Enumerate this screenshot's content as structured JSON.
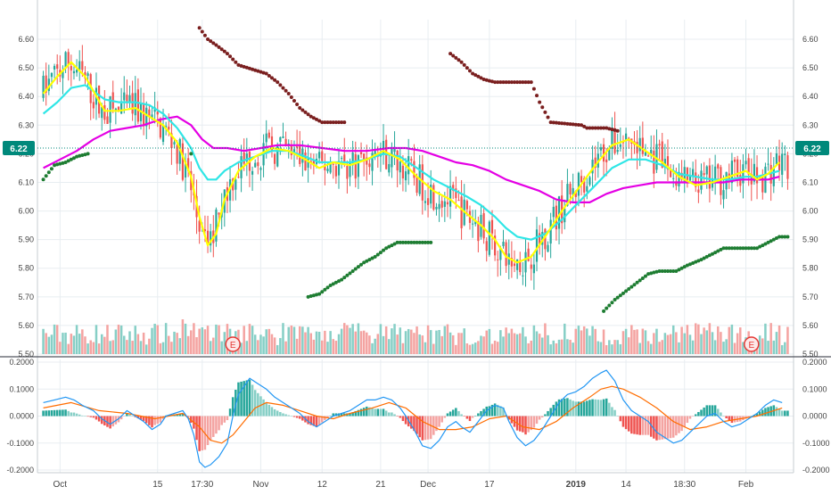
{
  "colors": {
    "up": "#26a69a",
    "down": "#ef5350",
    "vol_up": "#86cfc6",
    "vol_down": "#f4a3a1",
    "ema_fast": "#ffff00",
    "ema_mid": "#2fe6e6",
    "ema_slow": "#e400e4",
    "sar_up": "#1e7d32",
    "sar_down": "#7a1f1f",
    "macd": "#2196f3",
    "signal": "#ff6d00",
    "price_tag": "#00897b",
    "grid": "#e8edf1"
  },
  "chart_data": [
    {
      "type": "line",
      "title": "",
      "ylim": [
        5.5,
        6.65
      ],
      "y_ticks": [
        "6.60",
        "6.50",
        "6.40",
        "6.30",
        "6.20",
        "6.10",
        "6.00",
        "5.90",
        "5.80",
        "5.70",
        "5.60",
        "5.50"
      ],
      "x_ticks": [
        "Oct",
        "15",
        "17:30",
        "Nov",
        "12",
        "21",
        "Dec",
        "17",
        "2019",
        "14",
        "18:30",
        "Feb"
      ],
      "last_price": "6.22",
      "events": [
        "E",
        "E"
      ],
      "ema_fast": [
        [
          0,
          6.41
        ],
        [
          5,
          6.47
        ],
        [
          10,
          6.52
        ],
        [
          15,
          6.47
        ],
        [
          22,
          6.35
        ],
        [
          27,
          6.35
        ],
        [
          33,
          6.36
        ],
        [
          38,
          6.33
        ],
        [
          43,
          6.3
        ],
        [
          48,
          6.24
        ],
        [
          53,
          6.12
        ],
        [
          56,
          5.98
        ],
        [
          59,
          5.88
        ],
        [
          62,
          5.92
        ],
        [
          65,
          6.04
        ],
        [
          70,
          6.14
        ],
        [
          76,
          6.19
        ],
        [
          82,
          6.22
        ],
        [
          88,
          6.21
        ],
        [
          94,
          6.18
        ],
        [
          99,
          6.15
        ],
        [
          104,
          6.17
        ],
        [
          110,
          6.16
        ],
        [
          116,
          6.18
        ],
        [
          122,
          6.21
        ],
        [
          128,
          6.18
        ],
        [
          134,
          6.12
        ],
        [
          140,
          6.07
        ],
        [
          146,
          6.04
        ],
        [
          152,
          5.99
        ],
        [
          157,
          5.95
        ],
        [
          162,
          5.9
        ],
        [
          166,
          5.84
        ],
        [
          170,
          5.82
        ],
        [
          175,
          5.84
        ],
        [
          180,
          5.91
        ],
        [
          186,
          6.0
        ],
        [
          192,
          6.08
        ],
        [
          198,
          6.16
        ],
        [
          204,
          6.23
        ],
        [
          210,
          6.25
        ],
        [
          216,
          6.21
        ],
        [
          222,
          6.17
        ],
        [
          228,
          6.12
        ],
        [
          234,
          6.09
        ],
        [
          240,
          6.1
        ],
        [
          246,
          6.12
        ],
        [
          252,
          6.14
        ],
        [
          256,
          6.11
        ],
        [
          260,
          6.13
        ],
        [
          264,
          6.17
        ]
      ],
      "ema_mid": [
        [
          0,
          6.34
        ],
        [
          5,
          6.38
        ],
        [
          10,
          6.43
        ],
        [
          15,
          6.44
        ],
        [
          22,
          6.39
        ],
        [
          27,
          6.38
        ],
        [
          33,
          6.38
        ],
        [
          38,
          6.37
        ],
        [
          43,
          6.34
        ],
        [
          48,
          6.29
        ],
        [
          53,
          6.22
        ],
        [
          56,
          6.15
        ],
        [
          59,
          6.11
        ],
        [
          62,
          6.11
        ],
        [
          65,
          6.14
        ],
        [
          70,
          6.17
        ],
        [
          76,
          6.19
        ],
        [
          82,
          6.21
        ],
        [
          88,
          6.21
        ],
        [
          94,
          6.19
        ],
        [
          99,
          6.17
        ],
        [
          104,
          6.17
        ],
        [
          110,
          6.17
        ],
        [
          116,
          6.18
        ],
        [
          122,
          6.2
        ],
        [
          128,
          6.19
        ],
        [
          134,
          6.15
        ],
        [
          140,
          6.11
        ],
        [
          146,
          6.08
        ],
        [
          152,
          6.05
        ],
        [
          157,
          6.02
        ],
        [
          162,
          5.98
        ],
        [
          166,
          5.94
        ],
        [
          170,
          5.91
        ],
        [
          175,
          5.9
        ],
        [
          180,
          5.92
        ],
        [
          186,
          5.97
        ],
        [
          192,
          6.03
        ],
        [
          198,
          6.09
        ],
        [
          204,
          6.15
        ],
        [
          210,
          6.18
        ],
        [
          216,
          6.18
        ],
        [
          222,
          6.16
        ],
        [
          228,
          6.13
        ],
        [
          234,
          6.12
        ],
        [
          240,
          6.11
        ],
        [
          246,
          6.11
        ],
        [
          252,
          6.12
        ],
        [
          256,
          6.12
        ],
        [
          260,
          6.13
        ],
        [
          264,
          6.14
        ]
      ],
      "ema_slow": [
        [
          0,
          6.15
        ],
        [
          6,
          6.18
        ],
        [
          12,
          6.21
        ],
        [
          18,
          6.25
        ],
        [
          24,
          6.28
        ],
        [
          30,
          6.29
        ],
        [
          36,
          6.3
        ],
        [
          42,
          6.32
        ],
        [
          48,
          6.33
        ],
        [
          53,
          6.3
        ],
        [
          57,
          6.25
        ],
        [
          61,
          6.22
        ],
        [
          66,
          6.22
        ],
        [
          72,
          6.21
        ],
        [
          78,
          6.22
        ],
        [
          84,
          6.23
        ],
        [
          92,
          6.23
        ],
        [
          100,
          6.22
        ],
        [
          108,
          6.21
        ],
        [
          116,
          6.21
        ],
        [
          124,
          6.22
        ],
        [
          130,
          6.22
        ],
        [
          136,
          6.21
        ],
        [
          142,
          6.19
        ],
        [
          148,
          6.17
        ],
        [
          154,
          6.16
        ],
        [
          160,
          6.14
        ],
        [
          166,
          6.11
        ],
        [
          172,
          6.09
        ],
        [
          178,
          6.07
        ],
        [
          184,
          6.04
        ],
        [
          190,
          6.03
        ],
        [
          196,
          6.03
        ],
        [
          202,
          6.06
        ],
        [
          208,
          6.08
        ],
        [
          214,
          6.09
        ],
        [
          220,
          6.1
        ],
        [
          226,
          6.1
        ],
        [
          232,
          6.1
        ],
        [
          238,
          6.1
        ],
        [
          244,
          6.1
        ],
        [
          250,
          6.11
        ],
        [
          256,
          6.11
        ],
        [
          260,
          6.11
        ],
        [
          264,
          6.12
        ]
      ],
      "sar_up": [
        [
          0,
          6.11
        ],
        [
          4,
          6.16
        ],
        [
          8,
          6.17
        ],
        [
          12,
          6.19
        ],
        [
          16,
          6.2
        ],
        [
          53,
          6.2
        ],
        [
          95,
          5.7
        ],
        [
          99,
          5.71
        ],
        [
          103,
          5.74
        ],
        [
          107,
          5.76
        ],
        [
          111,
          5.79
        ],
        [
          115,
          5.82
        ],
        [
          119,
          5.84
        ],
        [
          123,
          5.87
        ],
        [
          127,
          5.89
        ],
        [
          139,
          5.89
        ],
        [
          201,
          5.65
        ],
        [
          205,
          5.69
        ],
        [
          209,
          5.72
        ],
        [
          213,
          5.75
        ],
        [
          217,
          5.78
        ],
        [
          221,
          5.79
        ],
        [
          227,
          5.79
        ],
        [
          231,
          5.81
        ],
        [
          236,
          5.83
        ],
        [
          240,
          5.85
        ],
        [
          244,
          5.87
        ],
        [
          256,
          5.87
        ],
        [
          260,
          5.89
        ],
        [
          264,
          5.91
        ],
        [
          267,
          5.91
        ]
      ],
      "sar_down": [
        [
          56,
          6.64
        ],
        [
          59,
          6.6
        ],
        [
          62,
          6.58
        ],
        [
          66,
          6.55
        ],
        [
          70,
          6.51
        ],
        [
          80,
          6.48
        ],
        [
          84,
          6.45
        ],
        [
          88,
          6.41
        ],
        [
          92,
          6.36
        ],
        [
          96,
          6.33
        ],
        [
          100,
          6.31
        ],
        [
          104,
          6.31
        ],
        [
          108,
          6.31
        ],
        [
          146,
          6.55
        ],
        [
          150,
          6.52
        ],
        [
          154,
          6.48
        ],
        [
          158,
          6.46
        ],
        [
          162,
          6.45
        ],
        [
          175,
          6.45
        ],
        [
          178,
          6.38
        ],
        [
          182,
          6.31
        ],
        [
          193,
          6.3
        ],
        [
          195,
          6.29
        ],
        [
          202,
          6.29
        ],
        [
          206,
          6.28
        ]
      ],
      "macd": [
        [
          0,
          0.05
        ],
        [
          4,
          0.06
        ],
        [
          8,
          0.07
        ],
        [
          11,
          0.06
        ],
        [
          14,
          0.04
        ],
        [
          18,
          0.02
        ],
        [
          21,
          -0.01
        ],
        [
          24,
          -0.03
        ],
        [
          27,
          -0.01
        ],
        [
          30,
          0.02
        ],
        [
          33,
          0.0
        ],
        [
          36,
          -0.02
        ],
        [
          39,
          -0.05
        ],
        [
          42,
          -0.03
        ],
        [
          44,
          0.0
        ],
        [
          47,
          0.01
        ],
        [
          50,
          0.02
        ],
        [
          52,
          -0.01
        ],
        [
          54,
          -0.07
        ],
        [
          56,
          -0.17
        ],
        [
          58,
          -0.19
        ],
        [
          60,
          -0.18
        ],
        [
          63,
          -0.15
        ],
        [
          66,
          -0.1
        ],
        [
          68,
          0.0
        ],
        [
          70,
          0.08
        ],
        [
          72,
          0.11
        ],
        [
          74,
          0.14
        ],
        [
          77,
          0.12
        ],
        [
          80,
          0.1
        ],
        [
          83,
          0.07
        ],
        [
          86,
          0.05
        ],
        [
          89,
          0.03
        ],
        [
          92,
          0.01
        ],
        [
          95,
          -0.02
        ],
        [
          98,
          -0.04
        ],
        [
          101,
          -0.02
        ],
        [
          104,
          0.0
        ],
        [
          107,
          0.01
        ],
        [
          110,
          0.02
        ],
        [
          113,
          0.04
        ],
        [
          116,
          0.06
        ],
        [
          119,
          0.06
        ],
        [
          122,
          0.07
        ],
        [
          125,
          0.06
        ],
        [
          128,
          0.03
        ],
        [
          130,
          0.0
        ],
        [
          133,
          -0.05
        ],
        [
          136,
          -0.11
        ],
        [
          139,
          -0.12
        ],
        [
          142,
          -0.09
        ],
        [
          145,
          -0.04
        ],
        [
          148,
          -0.02
        ],
        [
          150,
          -0.04
        ],
        [
          153,
          -0.06
        ],
        [
          156,
          -0.02
        ],
        [
          159,
          0.02
        ],
        [
          162,
          0.04
        ],
        [
          165,
          0.03
        ],
        [
          167,
          -0.02
        ],
        [
          170,
          -0.08
        ],
        [
          173,
          -0.11
        ],
        [
          176,
          -0.09
        ],
        [
          179,
          -0.05
        ],
        [
          182,
          0.0
        ],
        [
          185,
          0.05
        ],
        [
          188,
          0.08
        ],
        [
          191,
          0.09
        ],
        [
          194,
          0.11
        ],
        [
          197,
          0.14
        ],
        [
          200,
          0.16
        ],
        [
          202,
          0.17
        ],
        [
          205,
          0.13
        ],
        [
          208,
          0.06
        ],
        [
          211,
          0.02
        ],
        [
          214,
          0.0
        ],
        [
          217,
          -0.02
        ],
        [
          220,
          -0.06
        ],
        [
          223,
          -0.08
        ],
        [
          226,
          -0.1
        ],
        [
          229,
          -0.09
        ],
        [
          232,
          -0.06
        ],
        [
          235,
          -0.03
        ],
        [
          238,
          0.0
        ],
        [
          241,
          0.01
        ],
        [
          244,
          -0.02
        ],
        [
          247,
          -0.04
        ],
        [
          250,
          -0.03
        ],
        [
          253,
          -0.01
        ],
        [
          256,
          0.01
        ],
        [
          259,
          0.04
        ],
        [
          262,
          0.06
        ],
        [
          265,
          0.05
        ]
      ],
      "signal": [
        [
          0,
          0.03
        ],
        [
          10,
          0.05
        ],
        [
          20,
          0.02
        ],
        [
          30,
          0.01
        ],
        [
          40,
          -0.01
        ],
        [
          50,
          0.01
        ],
        [
          56,
          -0.04
        ],
        [
          60,
          -0.09
        ],
        [
          64,
          -0.1
        ],
        [
          68,
          -0.07
        ],
        [
          72,
          -0.02
        ],
        [
          76,
          0.03
        ],
        [
          80,
          0.05
        ],
        [
          86,
          0.04
        ],
        [
          92,
          0.02
        ],
        [
          98,
          0.0
        ],
        [
          104,
          -0.01
        ],
        [
          110,
          0.01
        ],
        [
          118,
          0.03
        ],
        [
          124,
          0.05
        ],
        [
          130,
          0.03
        ],
        [
          136,
          -0.02
        ],
        [
          142,
          -0.05
        ],
        [
          148,
          -0.05
        ],
        [
          154,
          -0.04
        ],
        [
          160,
          -0.01
        ],
        [
          166,
          0.0
        ],
        [
          172,
          -0.04
        ],
        [
          178,
          -0.05
        ],
        [
          184,
          -0.02
        ],
        [
          190,
          0.03
        ],
        [
          196,
          0.07
        ],
        [
          200,
          0.1
        ],
        [
          204,
          0.11
        ],
        [
          208,
          0.1
        ],
        [
          214,
          0.07
        ],
        [
          220,
          0.03
        ],
        [
          226,
          -0.02
        ],
        [
          232,
          -0.05
        ],
        [
          238,
          -0.04
        ],
        [
          244,
          -0.02
        ],
        [
          250,
          -0.01
        ],
        [
          256,
          0.0
        ],
        [
          262,
          0.02
        ],
        [
          265,
          0.03
        ]
      ]
    },
    {
      "type": "bar",
      "title": "",
      "ylim": [
        -0.2,
        0.2
      ],
      "y_ticks": [
        "0.2000",
        "0.1000",
        "0.0000",
        "-0.1000",
        "-0.2000"
      ]
    }
  ]
}
